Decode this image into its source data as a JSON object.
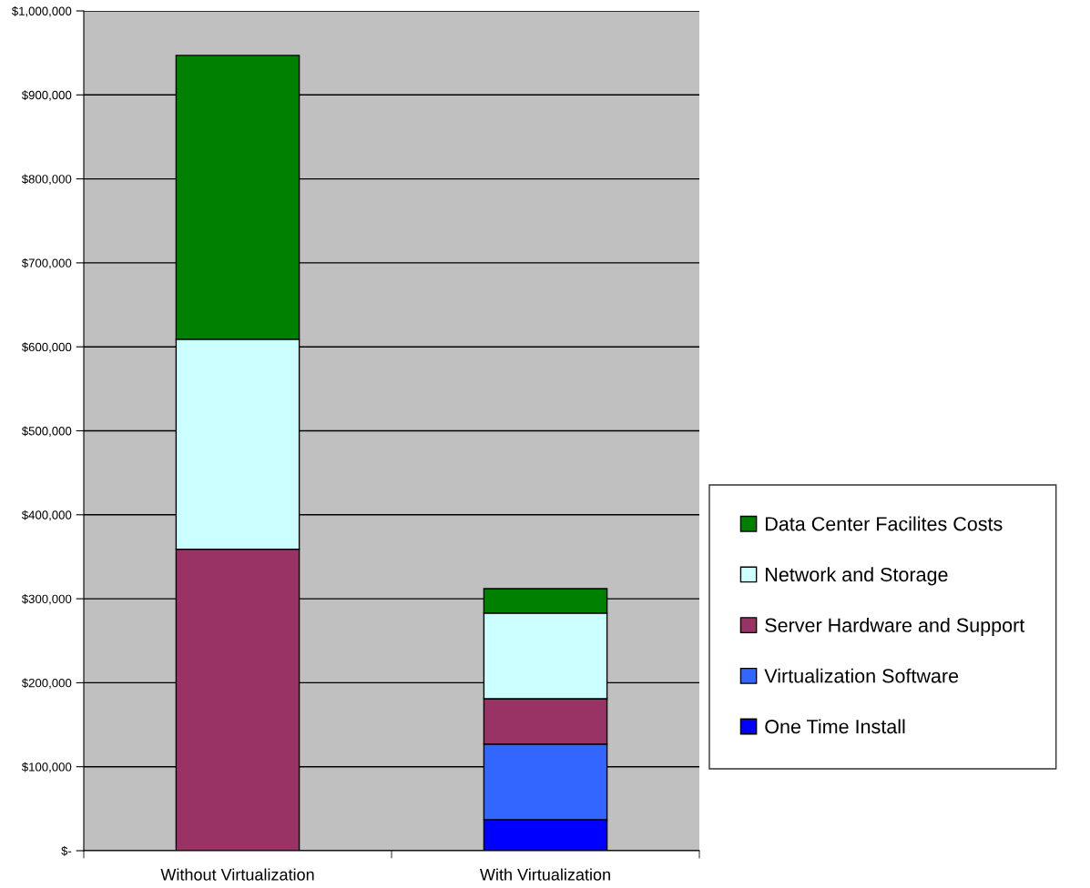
{
  "chart_data": {
    "type": "bar",
    "stacked": true,
    "categories": [
      "Without Virtualization",
      "With Virtualization"
    ],
    "series": [
      {
        "name": "One Time Install",
        "color": "#0000ff",
        "values": [
          0,
          37000
        ]
      },
      {
        "name": "Virtualization Software",
        "color": "#3366ff",
        "values": [
          0,
          90000
        ]
      },
      {
        "name": "Server Hardware and Support",
        "color": "#993366",
        "values": [
          359000,
          54000
        ]
      },
      {
        "name": "Network and Storage",
        "color": "#ccffff",
        "values": [
          250000,
          102000
        ]
      },
      {
        "name": "Data Center Facilites Costs",
        "color": "#008000",
        "values": [
          338000,
          29000
        ]
      }
    ],
    "ylim": [
      0,
      1000000
    ],
    "yticks": [
      {
        "value": 0,
        "label": "$-"
      },
      {
        "value": 100000,
        "label": "$100,000"
      },
      {
        "value": 200000,
        "label": "$200,000"
      },
      {
        "value": 300000,
        "label": "$300,000"
      },
      {
        "value": 400000,
        "label": "$400,000"
      },
      {
        "value": 500000,
        "label": "$500,000"
      },
      {
        "value": 600000,
        "label": "$600,000"
      },
      {
        "value": 700000,
        "label": "$700,000"
      },
      {
        "value": 800000,
        "label": "$800,000"
      },
      {
        "value": 900000,
        "label": "$900,000"
      },
      {
        "value": 1000000,
        "label": "$1,000,000"
      }
    ],
    "grid": "y",
    "legend": "right"
  }
}
